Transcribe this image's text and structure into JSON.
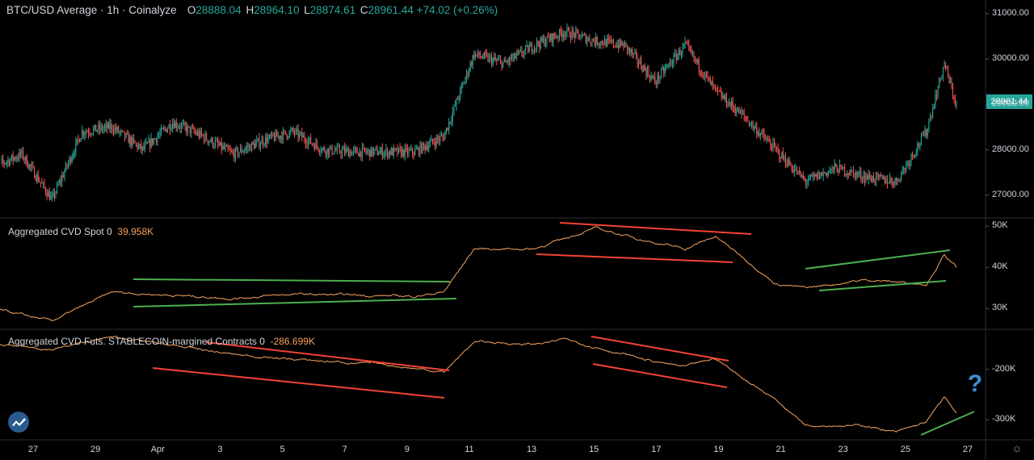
{
  "header": {
    "symbol_title": "BTC/USD Average · 1h · Coinalyze",
    "ohlc": [
      {
        "k": "O",
        "v": "28888.04"
      },
      {
        "k": "H",
        "v": "28964.10"
      },
      {
        "k": "L",
        "v": "28874.61"
      },
      {
        "k": "C",
        "v": "28961.44"
      }
    ],
    "change": "+74.02 (+0.26%)"
  },
  "price_badge": "28961.44",
  "panes": {
    "spot": {
      "name": "Aggregated CVD Spot 0",
      "value": "39.958K"
    },
    "futures": {
      "name": "Aggregated CVD Futs. STABLECOIN-margined Contracts 0",
      "value": "-286.699K"
    }
  },
  "annotation_question": "?",
  "colors": {
    "up": "#26a69a",
    "down": "#ef5350",
    "cvd_line": "#f7a35c",
    "trend_red": "#f44336",
    "trend_green": "#4caf50",
    "grid": "#1e222d"
  },
  "icons": {
    "logo": "tradingview-logo-icon",
    "settings": "gear-icon"
  },
  "chart_data": [
    {
      "type": "candlestick",
      "title": "BTC/USD Average · 1h · Coinalyze",
      "y_ticks": [
        27000,
        28000,
        29000,
        30000,
        31000
      ],
      "y_tick_labels": [
        "27000.00",
        "28000.00",
        "29000.00",
        "30000.00",
        "31000.00"
      ],
      "ylim": [
        26500,
        31300
      ],
      "x_ticks": [
        "27",
        "29",
        "Apr",
        "3",
        "5",
        "7",
        "9",
        "11",
        "13",
        "15",
        "17",
        "19",
        "21",
        "23",
        "25",
        "27"
      ],
      "approx_close_path": [
        {
          "x": "Mar 26",
          "y": 27600
        },
        {
          "x": "Mar 27",
          "y": 27900
        },
        {
          "x": "Mar 28",
          "y": 26900
        },
        {
          "x": "Mar 29",
          "y": 28400
        },
        {
          "x": "Mar 30",
          "y": 28500
        },
        {
          "x": "Mar 31",
          "y": 28000
        },
        {
          "x": "Apr 1",
          "y": 28600
        },
        {
          "x": "Apr 2",
          "y": 28300
        },
        {
          "x": "Apr 3",
          "y": 27900
        },
        {
          "x": "Apr 4",
          "y": 28200
        },
        {
          "x": "Apr 5",
          "y": 28400
        },
        {
          "x": "Apr 6",
          "y": 28000
        },
        {
          "x": "Apr 7",
          "y": 27950
        },
        {
          "x": "Apr 8",
          "y": 27950
        },
        {
          "x": "Apr 9",
          "y": 27950
        },
        {
          "x": "Apr 10",
          "y": 28300
        },
        {
          "x": "Apr 11",
          "y": 30100
        },
        {
          "x": "Apr 12",
          "y": 29900
        },
        {
          "x": "Apr 13",
          "y": 30300
        },
        {
          "x": "Apr 14",
          "y": 30600
        },
        {
          "x": "Apr 15",
          "y": 30400
        },
        {
          "x": "Apr 16",
          "y": 30300
        },
        {
          "x": "Apr 17",
          "y": 29500
        },
        {
          "x": "Apr 18",
          "y": 30300
        },
        {
          "x": "Apr 19",
          "y": 29300
        },
        {
          "x": "Apr 20",
          "y": 28700
        },
        {
          "x": "Apr 21",
          "y": 28000
        },
        {
          "x": "Apr 22",
          "y": 27300
        },
        {
          "x": "Apr 23",
          "y": 27600
        },
        {
          "x": "Apr 24",
          "y": 27400
        },
        {
          "x": "Apr 25",
          "y": 27300
        },
        {
          "x": "Apr 26",
          "y": 28400
        },
        {
          "x": "Apr 26 late",
          "y": 29900
        },
        {
          "x": "Apr 27",
          "y": 28961.44
        }
      ]
    },
    {
      "type": "line",
      "title": "Aggregated CVD Spot 0",
      "last_value_label": "39.958K",
      "y_ticks": [
        30000,
        40000,
        50000
      ],
      "y_tick_labels": [
        "30K",
        "40K",
        "50K"
      ],
      "ylim": [
        25000,
        52000
      ],
      "approx_path": [
        {
          "x": "Mar 26",
          "y": 30000
        },
        {
          "x": "Mar 28",
          "y": 27000
        },
        {
          "x": "Mar 30",
          "y": 34000
        },
        {
          "x": "Apr 3",
          "y": 32500
        },
        {
          "x": "Apr 5",
          "y": 33500
        },
        {
          "x": "Apr 9",
          "y": 33000
        },
        {
          "x": "Apr 10",
          "y": 34000
        },
        {
          "x": "Apr 11",
          "y": 44500
        },
        {
          "x": "Apr 13",
          "y": 44500
        },
        {
          "x": "Apr 15",
          "y": 49500
        },
        {
          "x": "Apr 17",
          "y": 46000
        },
        {
          "x": "Apr 18",
          "y": 44500
        },
        {
          "x": "Apr 19",
          "y": 47500
        },
        {
          "x": "Apr 20",
          "y": 42000
        },
        {
          "x": "Apr 21",
          "y": 36000
        },
        {
          "x": "Apr 22",
          "y": 35000
        },
        {
          "x": "Apr 24",
          "y": 37000
        },
        {
          "x": "Apr 26",
          "y": 36000
        },
        {
          "x": "Apr 26 late",
          "y": 43000
        },
        {
          "x": "Apr 27",
          "y": 39958
        }
      ]
    },
    {
      "type": "line",
      "title": "Aggregated CVD Futs. STABLECOIN-margined Contracts 0",
      "last_value_label": "-286.699K",
      "y_ticks": [
        -200000,
        -300000
      ],
      "y_tick_labels": [
        "-200K",
        "-300K"
      ],
      "ylim": [
        -340000,
        -120000
      ],
      "approx_path": [
        {
          "x": "Mar 26",
          "y": -150000
        },
        {
          "x": "Mar 28",
          "y": -160000
        },
        {
          "x": "Mar 30",
          "y": -135000
        },
        {
          "x": "Apr 3",
          "y": -170000
        },
        {
          "x": "Apr 5",
          "y": -180000
        },
        {
          "x": "Apr 8",
          "y": -190000
        },
        {
          "x": "Apr 10",
          "y": -205000
        },
        {
          "x": "Apr 11",
          "y": -145000
        },
        {
          "x": "Apr 13",
          "y": -150000
        },
        {
          "x": "Apr 14",
          "y": -140000
        },
        {
          "x": "Apr 15",
          "y": -155000
        },
        {
          "x": "Apr 17",
          "y": -185000
        },
        {
          "x": "Apr 18",
          "y": -195000
        },
        {
          "x": "Apr 19",
          "y": -178000
        },
        {
          "x": "Apr 20",
          "y": -220000
        },
        {
          "x": "Apr 21",
          "y": -260000
        },
        {
          "x": "Apr 22",
          "y": -310000
        },
        {
          "x": "Apr 24",
          "y": -312000
        },
        {
          "x": "Apr 25",
          "y": -325000
        },
        {
          "x": "Apr 26",
          "y": -305000
        },
        {
          "x": "Apr 26 late",
          "y": -255000
        },
        {
          "x": "Apr 27",
          "y": -286699
        }
      ]
    }
  ]
}
